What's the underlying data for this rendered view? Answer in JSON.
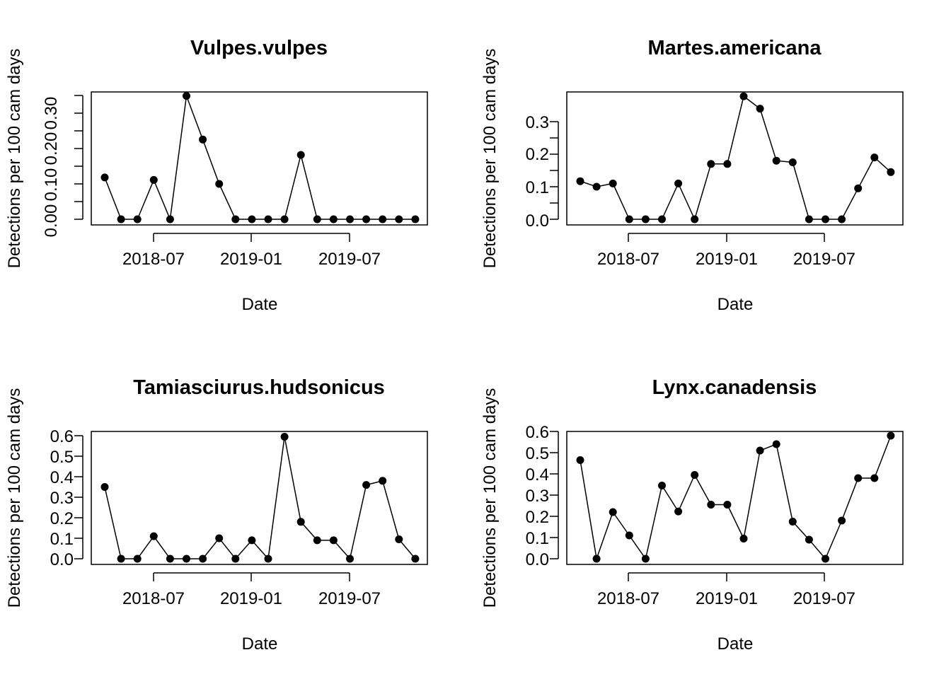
{
  "figure": {
    "panels": [
      {
        "title": "Vulpes.vulpes",
        "xlabel": "Date",
        "ylabel": "Detections per 100 cam days",
        "yticks": [
          "0.00",
          "0.10",
          "0.20",
          "0.30"
        ],
        "xticks": [
          "2018-07",
          "2019-01",
          "2019-07"
        ]
      },
      {
        "title": "Martes.americana",
        "xlabel": "Date",
        "ylabel": "Detections per 100 cam days",
        "yticks": [
          "0.0",
          "0.1",
          "0.2",
          "0.3"
        ],
        "xticks": [
          "2018-07",
          "2019-01",
          "2019-07"
        ]
      },
      {
        "title": "Tamiasciurus.hudsonicus",
        "xlabel": "Date",
        "ylabel": "Detections per 100 cam days",
        "yticks": [
          "0.0",
          "0.1",
          "0.2",
          "0.3",
          "0.4",
          "0.5",
          "0.6"
        ],
        "xticks": [
          "2018-07",
          "2019-01",
          "2019-07"
        ]
      },
      {
        "title": "Lynx.canadensis",
        "xlabel": "Date",
        "ylabel": "Detections per 100 cam days",
        "yticks": [
          "0.0",
          "0.1",
          "0.2",
          "0.3",
          "0.4",
          "0.5",
          "0.6"
        ],
        "xticks": [
          "2018-07",
          "2019-01",
          "2019-07"
        ]
      }
    ]
  },
  "chart_data": [
    {
      "type": "line",
      "title": "Vulpes.vulpes",
      "xlabel": "Date",
      "ylabel": "Detections per 100 cam days",
      "x": [
        "2018-04",
        "2018-05",
        "2018-06",
        "2018-07",
        "2018-08",
        "2018-09",
        "2018-10",
        "2018-11",
        "2018-12",
        "2019-01",
        "2019-02",
        "2019-03",
        "2019-04",
        "2019-05",
        "2019-06",
        "2019-07",
        "2019-08",
        "2019-09",
        "2019-10",
        "2019-11"
      ],
      "values": [
        0.117,
        0,
        0,
        0.11,
        0,
        0.345,
        0.223,
        0.099,
        0,
        0,
        0,
        0,
        0.18,
        0,
        0,
        0,
        0,
        0,
        0,
        0
      ],
      "xticks": [
        "2018-07",
        "2019-01",
        "2019-07"
      ],
      "yticks": [
        0,
        0.1,
        0.2,
        0.3
      ],
      "ylim": [
        0,
        0.345
      ],
      "grid": false,
      "markers": "filled-circle",
      "color": "#000000"
    },
    {
      "type": "line",
      "title": "Martes.americana",
      "xlabel": "Date",
      "ylabel": "Detections per 100 cam days",
      "x": [
        "2018-04",
        "2018-05",
        "2018-06",
        "2018-07",
        "2018-08",
        "2018-09",
        "2018-10",
        "2018-11",
        "2018-12",
        "2019-01",
        "2019-02",
        "2019-03",
        "2019-04",
        "2019-05",
        "2019-06",
        "2019-07",
        "2019-08",
        "2019-09",
        "2019-10",
        "2019-11"
      ],
      "values": [
        0.117,
        0.1,
        0.11,
        0,
        0,
        0,
        0.11,
        0,
        0.17,
        0.17,
        0.378,
        0.34,
        0.18,
        0.175,
        0,
        0,
        0,
        0.095,
        0.19,
        0.145
      ],
      "xticks": [
        "2018-07",
        "2019-01",
        "2019-07"
      ],
      "yticks": [
        0,
        0.1,
        0.2,
        0.3
      ],
      "ylim": [
        0,
        0.378
      ],
      "grid": false,
      "markers": "filled-circle",
      "color": "#000000"
    },
    {
      "type": "line",
      "title": "Tamiasciurus.hudsonicus",
      "xlabel": "Date",
      "ylabel": "Detections per 100 cam days",
      "x": [
        "2018-04",
        "2018-05",
        "2018-06",
        "2018-07",
        "2018-08",
        "2018-09",
        "2018-10",
        "2018-11",
        "2018-12",
        "2019-01",
        "2019-02",
        "2019-03",
        "2019-04",
        "2019-05",
        "2019-06",
        "2019-07",
        "2019-08",
        "2019-09",
        "2019-10",
        "2019-11"
      ],
      "values": [
        0.35,
        0,
        0,
        0.11,
        0,
        0,
        0,
        0.1,
        0,
        0.09,
        0,
        0.595,
        0.18,
        0.09,
        0.09,
        0,
        0.36,
        0.38,
        0.095,
        0
      ],
      "xticks": [
        "2018-07",
        "2019-01",
        "2019-07"
      ],
      "yticks": [
        0,
        0.1,
        0.2,
        0.3,
        0.4,
        0.5,
        0.6
      ],
      "ylim": [
        0,
        0.595
      ],
      "grid": false,
      "markers": "filled-circle",
      "color": "#000000"
    },
    {
      "type": "line",
      "title": "Lynx.canadensis",
      "xlabel": "Date",
      "ylabel": "Detections per 100 cam days",
      "x": [
        "2018-04",
        "2018-05",
        "2018-06",
        "2018-07",
        "2018-08",
        "2018-09",
        "2018-10",
        "2018-11",
        "2018-12",
        "2019-01",
        "2019-02",
        "2019-03",
        "2019-04",
        "2019-05",
        "2019-06",
        "2019-07",
        "2019-08",
        "2019-09",
        "2019-10",
        "2019-11"
      ],
      "values": [
        0.465,
        0,
        0.22,
        0.11,
        0,
        0.345,
        0.223,
        0.395,
        0.255,
        0.255,
        0.095,
        0.51,
        0.54,
        0.175,
        0.09,
        0,
        0.18,
        0.38,
        0.38,
        0.58
      ],
      "xticks": [
        "2018-07",
        "2019-01",
        "2019-07"
      ],
      "yticks": [
        0,
        0.1,
        0.2,
        0.3,
        0.4,
        0.5,
        0.6
      ],
      "ylim": [
        0,
        0.6
      ],
      "grid": false,
      "markers": "filled-circle",
      "color": "#000000"
    }
  ]
}
